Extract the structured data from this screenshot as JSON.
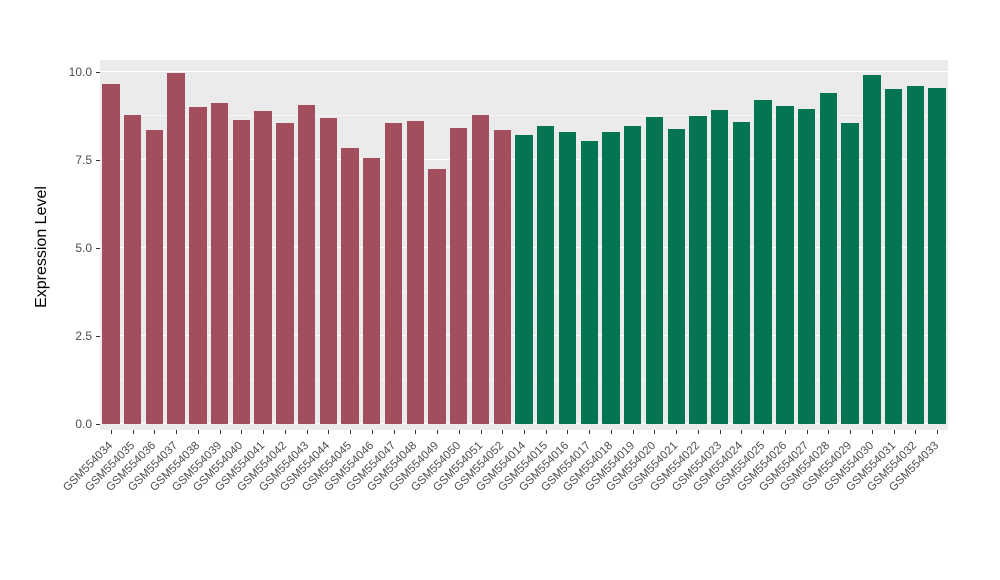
{
  "figure": {
    "background": "#FFFFFF",
    "panel_background": "#EBEBEB",
    "gridline_color": "#FFFFFF",
    "axis_text_color": "#4D4D4D",
    "axis_title_color": "#000000"
  },
  "chart_data": {
    "type": "bar",
    "title": "",
    "xlabel": "",
    "ylabel": "Expression Level",
    "ylim": [
      0,
      10.5
    ],
    "yticks": [
      0,
      2.5,
      5,
      7.5,
      10
    ],
    "ytick_labels": [
      "0.0",
      "2.5",
      "5.0",
      "7.5",
      "10.0"
    ],
    "minor_yticks": [
      1.25,
      3.75,
      6.25,
      8.75
    ],
    "grid": true,
    "legend": false,
    "group_colors": {
      "red_group": "#A34E5C",
      "green_group": "#047552"
    },
    "bars": [
      {
        "label": "GSM554034",
        "value": 9.66,
        "group": "red_group"
      },
      {
        "label": "GSM554035",
        "value": 8.78,
        "group": "red_group"
      },
      {
        "label": "GSM554036",
        "value": 8.35,
        "group": "red_group"
      },
      {
        "label": "GSM554037",
        "value": 9.97,
        "group": "red_group"
      },
      {
        "label": "GSM554038",
        "value": 9.0,
        "group": "red_group"
      },
      {
        "label": "GSM554039",
        "value": 9.12,
        "group": "red_group"
      },
      {
        "label": "GSM554040",
        "value": 8.64,
        "group": "red_group"
      },
      {
        "label": "GSM554041",
        "value": 8.89,
        "group": "red_group"
      },
      {
        "label": "GSM554042",
        "value": 8.55,
        "group": "red_group"
      },
      {
        "label": "GSM554043",
        "value": 9.06,
        "group": "red_group"
      },
      {
        "label": "GSM554044",
        "value": 8.69,
        "group": "red_group"
      },
      {
        "label": "GSM554045",
        "value": 7.84,
        "group": "red_group"
      },
      {
        "label": "GSM554046",
        "value": 7.56,
        "group": "red_group"
      },
      {
        "label": "GSM554047",
        "value": 8.55,
        "group": "red_group"
      },
      {
        "label": "GSM554048",
        "value": 8.61,
        "group": "red_group"
      },
      {
        "label": "GSM554049",
        "value": 7.24,
        "group": "red_group"
      },
      {
        "label": "GSM554050",
        "value": 8.41,
        "group": "red_group"
      },
      {
        "label": "GSM554051",
        "value": 8.78,
        "group": "red_group"
      },
      {
        "label": "GSM554052",
        "value": 8.35,
        "group": "red_group"
      },
      {
        "label": "GSM554014",
        "value": 8.21,
        "group": "green_group"
      },
      {
        "label": "GSM554015",
        "value": 8.47,
        "group": "green_group"
      },
      {
        "label": "GSM554016",
        "value": 8.3,
        "group": "green_group"
      },
      {
        "label": "GSM554017",
        "value": 8.04,
        "group": "green_group"
      },
      {
        "label": "GSM554018",
        "value": 8.3,
        "group": "green_group"
      },
      {
        "label": "GSM554019",
        "value": 8.47,
        "group": "green_group"
      },
      {
        "label": "GSM554020",
        "value": 8.72,
        "group": "green_group"
      },
      {
        "label": "GSM554021",
        "value": 8.38,
        "group": "green_group"
      },
      {
        "label": "GSM554022",
        "value": 8.75,
        "group": "green_group"
      },
      {
        "label": "GSM554023",
        "value": 8.92,
        "group": "green_group"
      },
      {
        "label": "GSM554024",
        "value": 8.58,
        "group": "green_group"
      },
      {
        "label": "GSM554025",
        "value": 9.2,
        "group": "green_group"
      },
      {
        "label": "GSM554026",
        "value": 9.03,
        "group": "green_group"
      },
      {
        "label": "GSM554027",
        "value": 8.95,
        "group": "green_group"
      },
      {
        "label": "GSM554028",
        "value": 9.4,
        "group": "green_group"
      },
      {
        "label": "GSM554029",
        "value": 8.55,
        "group": "green_group"
      },
      {
        "label": "GSM554030",
        "value": 9.91,
        "group": "green_group"
      },
      {
        "label": "GSM554031",
        "value": 9.52,
        "group": "green_group"
      },
      {
        "label": "GSM554032",
        "value": 9.6,
        "group": "green_group"
      },
      {
        "label": "GSM554033",
        "value": 9.55,
        "group": "green_group"
      }
    ]
  }
}
